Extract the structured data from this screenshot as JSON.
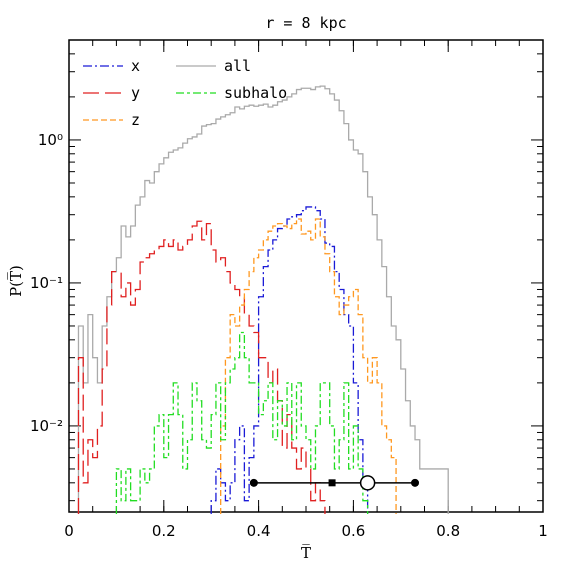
{
  "chart_data": {
    "type": "histogram",
    "title": "r = 8 kpc",
    "xlabel": "T̅",
    "ylabel": "P(T̅)",
    "xlim": [
      0,
      1
    ],
    "ylim": [
      0.0025,
      5
    ],
    "y_scale": "log",
    "x_ticks": [
      0,
      0.2,
      0.4,
      0.6,
      0.8,
      1
    ],
    "x_tick_labels": [
      "0",
      "0.2",
      "0.4",
      "0.6",
      "0.8",
      "1"
    ],
    "y_ticks": [
      0.01,
      0.1,
      1
    ],
    "y_tick_labels": [
      "10⁻²",
      "10⁻¹",
      "10⁰"
    ],
    "legend_position": "top-left",
    "bin_edges_start": 0.02,
    "bin_width": 0.01,
    "series": [
      {
        "name": "all",
        "color": "#aaaaaa",
        "dash": "",
        "values": [
          0.05,
          0.02,
          0.06,
          0.03,
          0.02,
          0.05,
          0.08,
          0.12,
          0.15,
          0.25,
          0.21,
          0.25,
          0.35,
          0.4,
          0.52,
          0.5,
          0.6,
          0.68,
          0.75,
          0.82,
          0.85,
          0.88,
          0.95,
          1.02,
          1.05,
          1.1,
          1.25,
          1.28,
          1.3,
          1.4,
          1.45,
          1.5,
          1.55,
          1.7,
          1.65,
          1.72,
          1.75,
          1.72,
          1.75,
          1.78,
          1.7,
          1.75,
          1.85,
          1.9,
          2.0,
          2.1,
          2.25,
          2.3,
          2.3,
          2.25,
          2.35,
          2.38,
          2.28,
          2.1,
          1.9,
          1.6,
          1.3,
          1.0,
          0.85,
          0.8,
          0.6,
          0.4,
          0.3,
          0.2,
          0.13,
          0.08,
          0.05,
          0.04,
          0.025,
          0.015,
          0.01,
          0.008,
          0.005,
          0.005,
          0.005,
          0.005,
          0.005,
          0.005
        ]
      },
      {
        "name": "x",
        "color": "#1a1ad6",
        "dash": "9,3,2,3",
        "values": [
          null,
          null,
          null,
          null,
          null,
          null,
          null,
          null,
          null,
          null,
          null,
          null,
          null,
          null,
          null,
          null,
          null,
          null,
          null,
          null,
          null,
          null,
          null,
          null,
          null,
          null,
          null,
          null,
          0.003,
          0.005,
          0.004,
          0.003,
          0.004,
          0.008,
          0.01,
          0.003,
          0.006,
          0.01,
          0.08,
          0.13,
          0.17,
          0.2,
          0.24,
          0.25,
          0.28,
          0.29,
          0.3,
          0.32,
          0.34,
          0.34,
          0.32,
          0.28,
          0.19,
          0.18,
          0.12,
          0.09,
          0.06,
          0.05,
          0.02,
          0.008,
          0.004
        ]
      },
      {
        "name": "y",
        "color": "#e02020",
        "dash": "16,6",
        "values": [
          0.03,
          0.004,
          0.008,
          0.006,
          0.01,
          0.025,
          0.07,
          0.12,
          0.12,
          0.08,
          0.1,
          0.07,
          0.09,
          0.14,
          0.15,
          0.16,
          0.17,
          0.18,
          0.2,
          0.18,
          0.2,
          0.17,
          0.18,
          0.2,
          0.25,
          0.27,
          0.2,
          0.26,
          0.17,
          0.14,
          0.15,
          0.12,
          0.1,
          0.09,
          0.08,
          0.06,
          0.05,
          0.045,
          0.03,
          0.03,
          0.02,
          0.025,
          0.015,
          0.007,
          0.012,
          0.007,
          0.005,
          0.007,
          0.005,
          0.003,
          0.004,
          0.003
        ]
      },
      {
        "name": "z",
        "color": "#ff9820",
        "dash": "6,3",
        "values": [
          null,
          null,
          null,
          null,
          null,
          null,
          null,
          null,
          null,
          null,
          null,
          null,
          null,
          null,
          null,
          null,
          null,
          null,
          null,
          null,
          null,
          null,
          null,
          null,
          null,
          null,
          null,
          null,
          null,
          null,
          0.01,
          0.03,
          0.06,
          0.05,
          0.07,
          0.09,
          0.12,
          0.15,
          0.17,
          0.2,
          0.23,
          0.25,
          0.26,
          0.25,
          0.24,
          0.26,
          0.28,
          0.22,
          0.23,
          0.2,
          0.28,
          0.21,
          0.16,
          0.12,
          0.08,
          0.06,
          0.07,
          0.08,
          0.09,
          0.06,
          0.03,
          0.02,
          0.03,
          0.02,
          0.01,
          0.008,
          0.006
        ]
      },
      {
        "name": "subhalo",
        "color": "#22dd22",
        "dash": "8,3,3,3",
        "values": [
          null,
          null,
          null,
          null,
          null,
          null,
          null,
          null,
          0.005,
          0.003,
          0.005,
          0.003,
          0.003,
          0.005,
          0.004,
          0.005,
          0.01,
          0.012,
          0.006,
          0.012,
          0.02,
          0.012,
          0.005,
          0.008,
          0.02,
          0.015,
          0.008,
          0.007,
          0.012,
          0.02,
          0.008,
          0.02,
          0.025,
          0.03,
          0.045,
          0.03,
          0.02,
          0.02,
          0.012,
          0.015,
          0.02,
          0.008,
          0.015,
          0.01,
          0.02,
          0.008,
          0.02,
          0.01,
          0.008,
          0.005,
          0.01,
          0.02,
          0.02,
          0.01,
          0.005,
          0.008,
          0.02,
          0.005,
          0.01,
          0.005,
          0.003
        ]
      }
    ],
    "point_markers": {
      "filled_circles": [
        0.39,
        0.73
      ],
      "filled_square": 0.555,
      "open_circle": 0.63,
      "y": 0.004
    }
  }
}
